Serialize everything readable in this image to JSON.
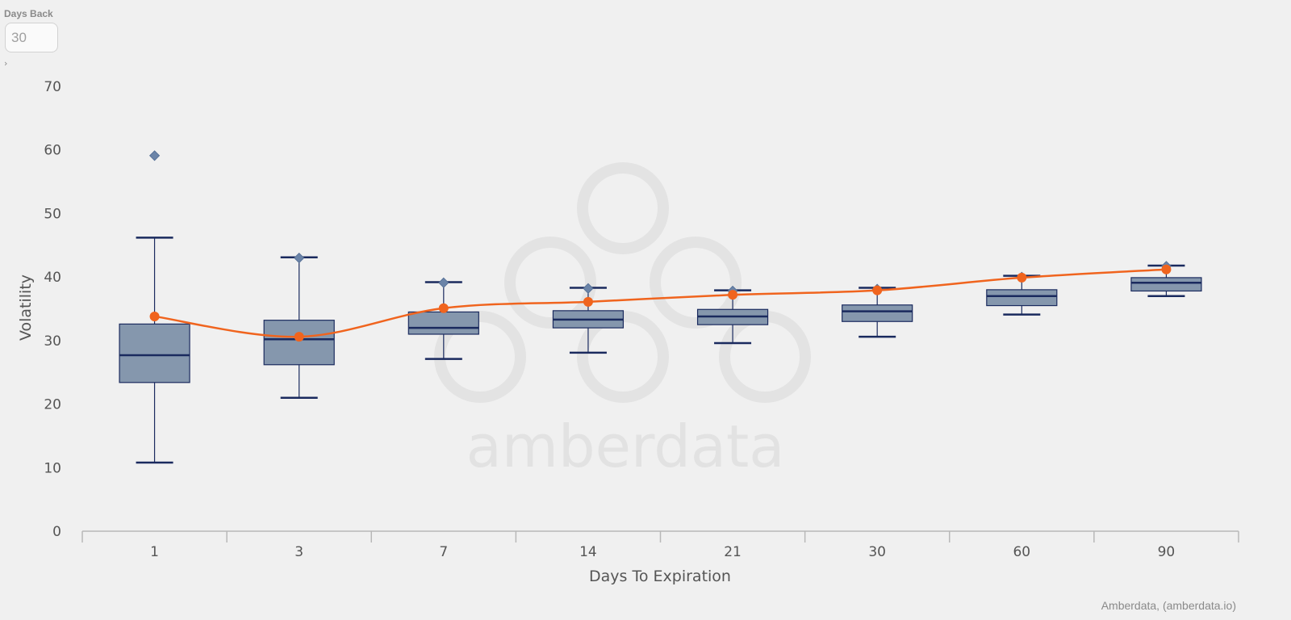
{
  "controls": {
    "days_back_label": "Days Back",
    "days_back_value": "30",
    "expand_icon": "chevron-right-icon"
  },
  "watermark": {
    "text": "amberdata",
    "logo_icon": "amberdata-logo-icon"
  },
  "credit": "Amberdata, (amberdata.io)",
  "colors": {
    "box_fill": "#8597ad",
    "box_stroke": "#1a2a5e",
    "outlier": "#6b84a8",
    "line": "#f0641e",
    "background": "#f0f0f0",
    "axis": "#b8b8b8"
  },
  "chart_data": {
    "type": "boxplot",
    "xlabel": "Days To Expiration",
    "ylabel": "Volatility",
    "ylim": [
      0,
      70
    ],
    "y_ticks": [
      0,
      10,
      20,
      30,
      40,
      50,
      60,
      70
    ],
    "categories": [
      "1",
      "3",
      "7",
      "14",
      "21",
      "30",
      "60",
      "90"
    ],
    "boxes": [
      {
        "category": "1",
        "min": 10.8,
        "q1": 23.4,
        "median": 27.7,
        "q3": 32.6,
        "max": 46.2
      },
      {
        "category": "3",
        "min": 21.0,
        "q1": 26.2,
        "median": 30.2,
        "q3": 33.2,
        "max": 43.1
      },
      {
        "category": "7",
        "min": 27.1,
        "q1": 31.0,
        "median": 32.0,
        "q3": 34.5,
        "max": 39.2
      },
      {
        "category": "14",
        "min": 28.1,
        "q1": 32.0,
        "median": 33.3,
        "q3": 34.7,
        "max": 38.3
      },
      {
        "category": "21",
        "min": 29.6,
        "q1": 32.5,
        "median": 33.8,
        "q3": 34.9,
        "max": 37.9
      },
      {
        "category": "30",
        "min": 30.6,
        "q1": 33.0,
        "median": 34.6,
        "q3": 35.6,
        "max": 38.3
      },
      {
        "category": "60",
        "min": 34.1,
        "q1": 35.5,
        "median": 37.0,
        "q3": 38.0,
        "max": 40.2
      },
      {
        "category": "90",
        "min": 37.0,
        "q1": 37.8,
        "median": 39.1,
        "q3": 39.9,
        "max": 41.8
      }
    ],
    "outliers": [
      {
        "category": "1",
        "value": 59.1
      },
      {
        "category": "3",
        "value": 43.0
      },
      {
        "category": "7",
        "value": 39.1
      },
      {
        "category": "14",
        "value": 38.2
      },
      {
        "category": "21",
        "value": 37.8
      },
      {
        "category": "30",
        "value": 38.1
      },
      {
        "category": "60",
        "value": 40.0
      },
      {
        "category": "90",
        "value": 41.7
      }
    ],
    "line_series": {
      "values": [
        33.8,
        30.6,
        35.1,
        36.1,
        37.2,
        37.9,
        39.9,
        41.2
      ]
    },
    "grid": false,
    "legend": "none"
  }
}
